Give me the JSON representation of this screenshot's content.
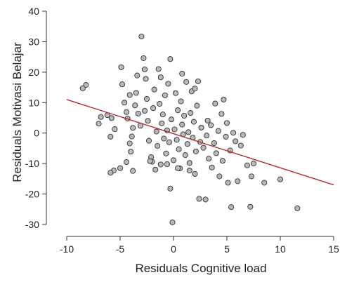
{
  "chart_data": {
    "type": "scatter",
    "xlabel": "Residuals Cognitive load",
    "ylabel": "Residuals Motivasi Belajar",
    "xlim": [
      -10,
      15
    ],
    "ylim": [
      -30,
      40
    ],
    "xticks": [
      -10,
      -5,
      0,
      5,
      10,
      15
    ],
    "yticks": [
      -30,
      -20,
      -10,
      0,
      10,
      20,
      30,
      40
    ],
    "grid": false,
    "legend": "none",
    "colors": {
      "point_fill": "#b8b8b8",
      "point_stroke": "#333333",
      "line": "#b22a2a"
    },
    "regression_line": {
      "x": [
        -10,
        15
      ],
      "y": [
        11,
        -17
      ]
    },
    "series": [
      {
        "values": [
          {
            "x": -8.2,
            "y": 15.8
          },
          {
            "x": -8.5,
            "y": 14.7
          },
          {
            "x": -7.0,
            "y": 3.1
          },
          {
            "x": -6.8,
            "y": 5.3
          },
          {
            "x": -6.2,
            "y": 5.9
          },
          {
            "x": -5.8,
            "y": 4.9
          },
          {
            "x": -5.5,
            "y": 1.3
          },
          {
            "x": -5.9,
            "y": -1.2
          },
          {
            "x": -5.6,
            "y": -12.3
          },
          {
            "x": -5.9,
            "y": -13.0
          },
          {
            "x": -5.0,
            "y": -11.5
          },
          {
            "x": -4.9,
            "y": 21.6
          },
          {
            "x": -4.8,
            "y": 16.0
          },
          {
            "x": -4.6,
            "y": 10.0
          },
          {
            "x": -4.4,
            "y": 6.9
          },
          {
            "x": -4.3,
            "y": 4.8
          },
          {
            "x": -4.1,
            "y": -3.4
          },
          {
            "x": -4.0,
            "y": -6.1
          },
          {
            "x": -3.9,
            "y": -1.1
          },
          {
            "x": -3.8,
            "y": 1.7
          },
          {
            "x": -3.6,
            "y": 9.1
          },
          {
            "x": -3.5,
            "y": 13.2
          },
          {
            "x": -3.4,
            "y": 18.9
          },
          {
            "x": -3.3,
            "y": 6.4
          },
          {
            "x": -3.1,
            "y": 2.4
          },
          {
            "x": -3.0,
            "y": 31.7
          },
          {
            "x": -2.8,
            "y": 24.6
          },
          {
            "x": -2.7,
            "y": 20.9
          },
          {
            "x": -2.6,
            "y": 17.8
          },
          {
            "x": -2.5,
            "y": 11.2
          },
          {
            "x": -2.4,
            "y": 4.0
          },
          {
            "x": -2.3,
            "y": -2.5
          },
          {
            "x": -2.1,
            "y": -7.9
          },
          {
            "x": -2.0,
            "y": -9.4
          },
          {
            "x": -1.9,
            "y": 8.2
          },
          {
            "x": -1.8,
            "y": 14.3
          },
          {
            "x": -1.6,
            "y": 0.5
          },
          {
            "x": -1.5,
            "y": -4.2
          },
          {
            "x": -1.4,
            "y": 21.0
          },
          {
            "x": -1.3,
            "y": 9.6
          },
          {
            "x": -1.2,
            "y": -10.3
          },
          {
            "x": -1.1,
            "y": 3.2
          },
          {
            "x": -1.0,
            "y": 6.1
          },
          {
            "x": -0.9,
            "y": -1.8
          },
          {
            "x": -0.8,
            "y": 12.4
          },
          {
            "x": -0.7,
            "y": -6.7
          },
          {
            "x": -0.6,
            "y": 0.9
          },
          {
            "x": -0.5,
            "y": 16.2
          },
          {
            "x": -0.4,
            "y": -3.0
          },
          {
            "x": -0.3,
            "y": 24.3
          },
          {
            "x": -0.3,
            "y": -18.2
          },
          {
            "x": -0.2,
            "y": 4.5
          },
          {
            "x": -0.1,
            "y": -29.3
          },
          {
            "x": 0.0,
            "y": -8.9
          },
          {
            "x": 0.1,
            "y": 1.2
          },
          {
            "x": 0.2,
            "y": 13.1
          },
          {
            "x": 0.3,
            "y": -2.2
          },
          {
            "x": 0.4,
            "y": 7.5
          },
          {
            "x": 0.5,
            "y": -5.3
          },
          {
            "x": 0.6,
            "y": -11.6
          },
          {
            "x": 0.7,
            "y": 10.4
          },
          {
            "x": 0.8,
            "y": 2.8
          },
          {
            "x": 0.9,
            "y": -0.4
          },
          {
            "x": 1.0,
            "y": 5.7
          },
          {
            "x": 1.1,
            "y": -7.2
          },
          {
            "x": 1.2,
            "y": 16.8
          },
          {
            "x": 1.3,
            "y": -3.6
          },
          {
            "x": 1.4,
            "y": 0.3
          },
          {
            "x": 1.5,
            "y": -9.8
          },
          {
            "x": 1.6,
            "y": 6.6
          },
          {
            "x": 1.7,
            "y": 13.7
          },
          {
            "x": 1.8,
            "y": -1.5
          },
          {
            "x": 1.9,
            "y": 3.7
          },
          {
            "x": 2.0,
            "y": -13.4
          },
          {
            "x": 2.1,
            "y": -6.0
          },
          {
            "x": 2.2,
            "y": 9.0
          },
          {
            "x": 2.3,
            "y": 17.0
          },
          {
            "x": 2.4,
            "y": -21.6
          },
          {
            "x": 2.5,
            "y": -2.9
          },
          {
            "x": 2.6,
            "y": 1.8
          },
          {
            "x": 2.8,
            "y": -4.8
          },
          {
            "x": 3.0,
            "y": -21.8
          },
          {
            "x": 3.1,
            "y": -0.8
          },
          {
            "x": 3.2,
            "y": 4.1
          },
          {
            "x": 3.3,
            "y": -8.4
          },
          {
            "x": 3.5,
            "y": 2.6
          },
          {
            "x": 3.6,
            "y": -11.3
          },
          {
            "x": 3.8,
            "y": -3.3
          },
          {
            "x": 3.9,
            "y": 9.7
          },
          {
            "x": 4.0,
            "y": -6.6
          },
          {
            "x": 4.2,
            "y": 0.7
          },
          {
            "x": 4.3,
            "y": -14.2
          },
          {
            "x": 4.5,
            "y": 6.3
          },
          {
            "x": 4.6,
            "y": -9.1
          },
          {
            "x": 4.7,
            "y": 11.0
          },
          {
            "x": 4.9,
            "y": -1.2
          },
          {
            "x": 5.0,
            "y": 3.3
          },
          {
            "x": 5.1,
            "y": -16.3
          },
          {
            "x": 5.3,
            "y": -5.7
          },
          {
            "x": 5.4,
            "y": -24.3
          },
          {
            "x": 5.6,
            "y": 0.1
          },
          {
            "x": 5.8,
            "y": -2.7
          },
          {
            "x": 6.0,
            "y": -15.8
          },
          {
            "x": 6.3,
            "y": -4.1
          },
          {
            "x": 6.5,
            "y": -0.6
          },
          {
            "x": 6.9,
            "y": -10.6
          },
          {
            "x": 7.2,
            "y": -24.2
          },
          {
            "x": 7.3,
            "y": -14.2
          },
          {
            "x": 7.5,
            "y": -10.0
          },
          {
            "x": 8.5,
            "y": -16.3
          },
          {
            "x": 10.0,
            "y": -15.2
          },
          {
            "x": 11.6,
            "y": -24.7
          },
          {
            "x": -1.7,
            "y": -12.0
          },
          {
            "x": -0.6,
            "y": -10.2
          },
          {
            "x": 0.4,
            "y": -11.5
          },
          {
            "x": -2.2,
            "y": -9.2
          },
          {
            "x": -3.8,
            "y": -12.4
          },
          {
            "x": -4.4,
            "y": -9.5
          },
          {
            "x": 1.5,
            "y": -12.3
          },
          {
            "x": 0.8,
            "y": 19.5
          },
          {
            "x": -1.2,
            "y": 18.3
          },
          {
            "x": 2.0,
            "y": 14.6
          },
          {
            "x": -2.7,
            "y": 7.3
          },
          {
            "x": -4.1,
            "y": 12.5
          }
        ]
      }
    ]
  }
}
